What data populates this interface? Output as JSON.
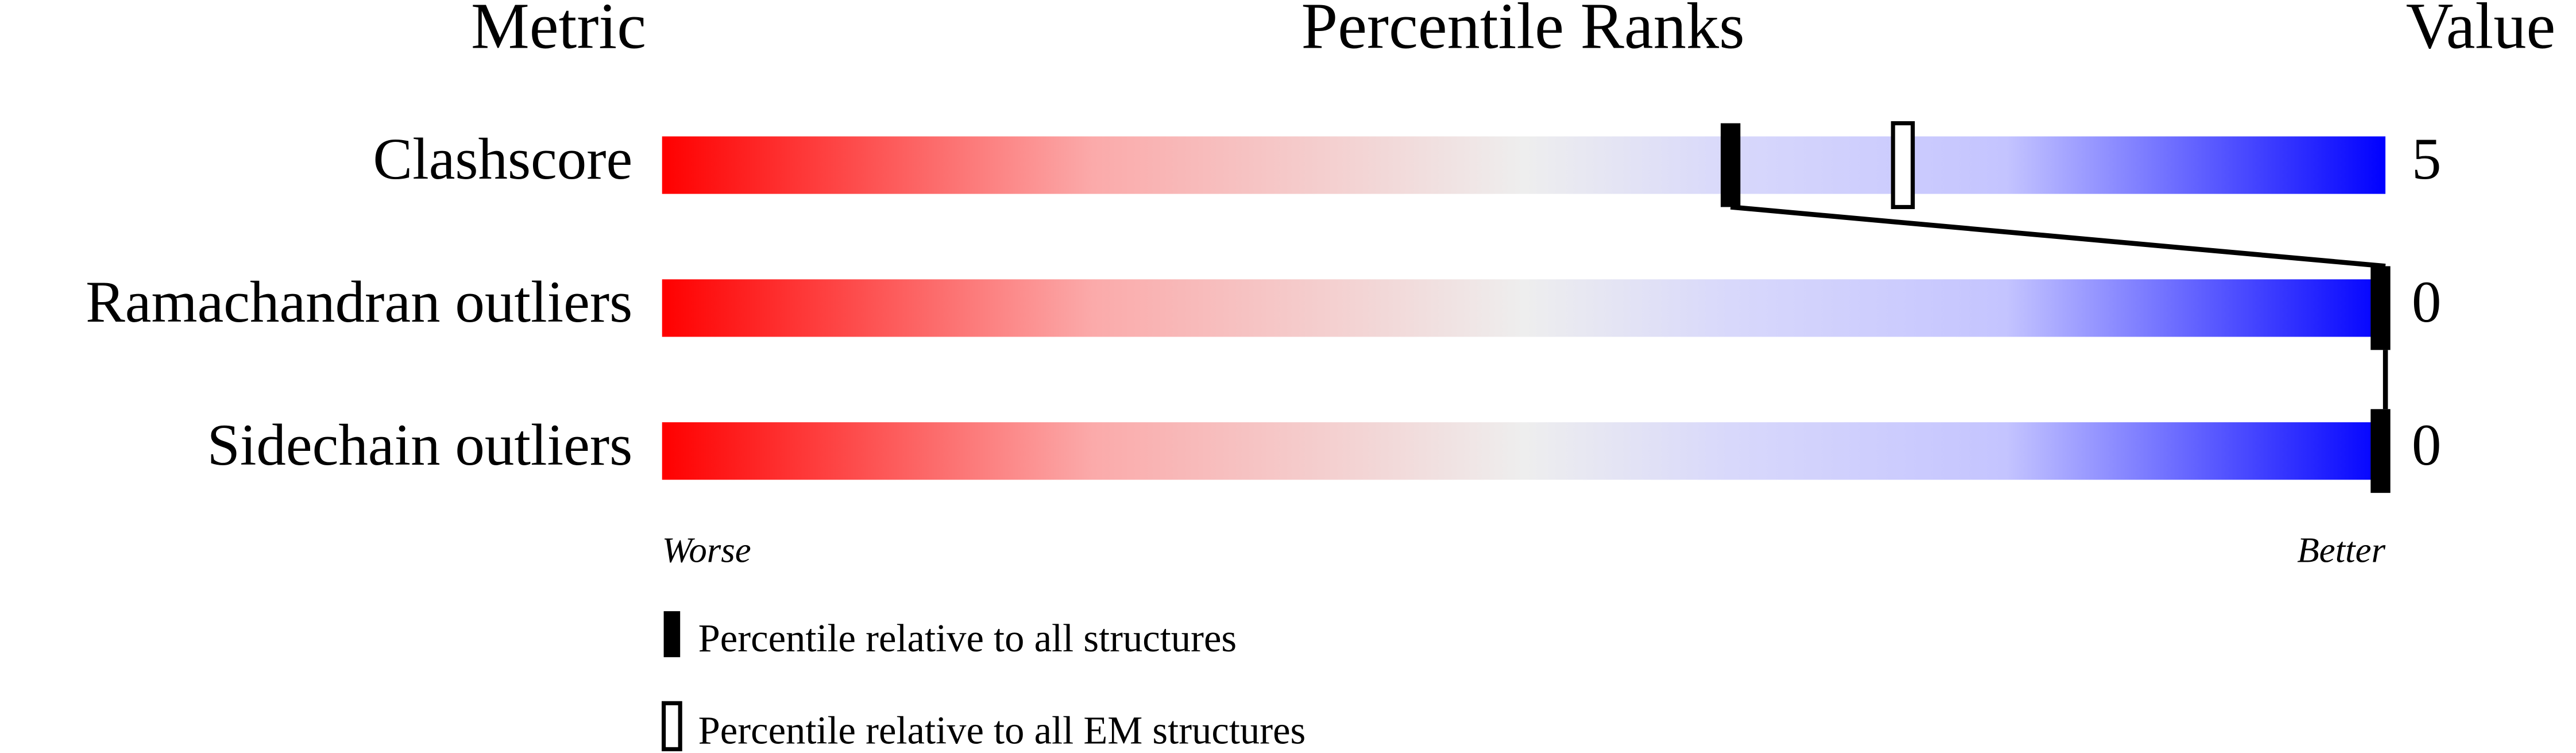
{
  "chart_data": {
    "type": "percentile",
    "headers": {
      "metric": "Metric",
      "ranks": "Percentile Ranks",
      "value": "Value"
    },
    "categories": [
      "Clashscore",
      "Ramachandran outliers",
      "Sidechain outliers"
    ],
    "values": [
      5,
      0,
      0
    ],
    "series": [
      {
        "name": "Percentile relative to all structures",
        "color": "#000000",
        "filled": true,
        "values": [
          62,
          100,
          100
        ]
      },
      {
        "name": "Percentile relative to all EM structures",
        "color": "#000000",
        "filled": false,
        "values": [
          72,
          null,
          null
        ]
      }
    ],
    "xlim": [
      0,
      100
    ],
    "low_label": "Worse",
    "high_label": "Better"
  }
}
